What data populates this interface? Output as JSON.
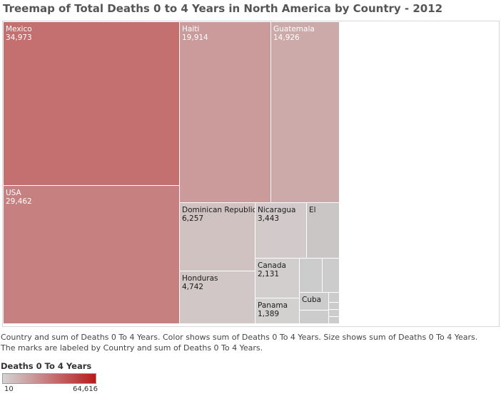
{
  "title": "Treemap of Total Deaths 0 to 4 Years in North America by Country - 2012",
  "description": [
    "Country and sum of Deaths 0 To 4 Years.  Color shows sum of Deaths 0 To 4 Years.  Size shows sum of Deaths 0 To 4 Years.",
    "The marks are labeled by Country and sum of Deaths 0 To 4 Years."
  ],
  "legend": {
    "title": "Deaths 0 To 4 Years",
    "min_label": "10",
    "max_label": "64,616",
    "min_color": "#d4d4d4",
    "max_color": "#b71c1c"
  },
  "chart_data": {
    "type": "treemap",
    "measure": "Deaths 0 To 4 Years",
    "color_range": [
      10,
      64616
    ],
    "items": [
      {
        "country": "Mexico",
        "value": 34973,
        "label": "Mexico",
        "value_label": "34,973"
      },
      {
        "country": "USA",
        "value": 29462,
        "label": "USA",
        "value_label": "29,462"
      },
      {
        "country": "Haiti",
        "value": 19914,
        "label": "Haiti",
        "value_label": "19,914"
      },
      {
        "country": "Guatemala",
        "value": 14926,
        "label": "Guatemala",
        "value_label": "14,926"
      },
      {
        "country": "Dominican Republic",
        "value": 6257,
        "label": "Dominican Republic",
        "value_label": "6,257"
      },
      {
        "country": "Honduras",
        "value": 4742,
        "label": "Honduras",
        "value_label": "4,742"
      },
      {
        "country": "Nicaragua",
        "value": 3443,
        "label": "Nicaragua",
        "value_label": "3,443"
      },
      {
        "country": "El Salvador",
        "value": null,
        "label": "El",
        "value_label": ""
      },
      {
        "country": "Canada",
        "value": 2131,
        "label": "Canada",
        "value_label": "2,131"
      },
      {
        "country": "Panama",
        "value": 1389,
        "label": "Panama",
        "value_label": "1,389"
      },
      {
        "country": "Cuba",
        "value": null,
        "label": "Cuba",
        "value_label": ""
      },
      {
        "country": "",
        "value": null,
        "label": "",
        "value_label": ""
      },
      {
        "country": "",
        "value": null,
        "label": "",
        "value_label": ""
      },
      {
        "country": "",
        "value": null,
        "label": "",
        "value_label": ""
      },
      {
        "country": "",
        "value": null,
        "label": "",
        "value_label": ""
      },
      {
        "country": "",
        "value": null,
        "label": "",
        "value_label": ""
      },
      {
        "country": "",
        "value": null,
        "label": "",
        "value_label": ""
      },
      {
        "country": "",
        "value": null,
        "label": "",
        "value_label": ""
      }
    ]
  }
}
